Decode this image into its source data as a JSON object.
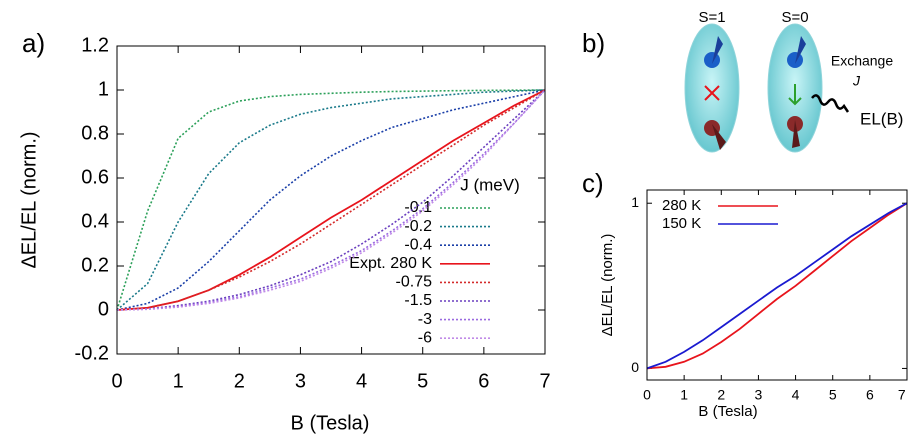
{
  "chart_data": [
    {
      "type": "line",
      "panel_label": "a)",
      "xlabel": "B (Tesla)",
      "ylabel": "ΔEL/EL (norm.)",
      "legend_title": "J (meV)",
      "legend": "upper right",
      "xlim": [
        0,
        7
      ],
      "ylim": [
        -0.2,
        1.2
      ],
      "xticks": [
        0,
        1,
        2,
        3,
        4,
        5,
        6,
        7
      ],
      "yticks": [
        -0.2,
        0,
        0.2,
        0.4,
        0.6,
        0.8,
        1,
        1.2
      ],
      "x": [
        0,
        0.5,
        1,
        1.5,
        2,
        2.5,
        3,
        3.5,
        4,
        4.5,
        5,
        5.5,
        6,
        6.5,
        7
      ],
      "series": [
        {
          "name": "-0.1",
          "color": "#2ca05a",
          "style": "dotted",
          "values": [
            0,
            0.45,
            0.78,
            0.9,
            0.95,
            0.97,
            0.98,
            0.985,
            0.99,
            0.993,
            0.995,
            0.997,
            0.998,
            0.999,
            1
          ]
        },
        {
          "name": "-0.2",
          "color": "#1a7a8a",
          "style": "dotted",
          "values": [
            0,
            0.12,
            0.4,
            0.62,
            0.76,
            0.84,
            0.89,
            0.92,
            0.94,
            0.96,
            0.97,
            0.98,
            0.99,
            0.995,
            1
          ]
        },
        {
          "name": "-0.4",
          "color": "#1a3fa8",
          "style": "dotted",
          "values": [
            0,
            0.03,
            0.1,
            0.22,
            0.36,
            0.5,
            0.61,
            0.7,
            0.77,
            0.83,
            0.87,
            0.91,
            0.94,
            0.97,
            1
          ]
        },
        {
          "name": "Expt. 280 K",
          "color": "#e8141c",
          "style": "solid",
          "values": [
            0,
            0.01,
            0.04,
            0.09,
            0.16,
            0.24,
            0.33,
            0.42,
            0.5,
            0.59,
            0.68,
            0.77,
            0.85,
            0.93,
            1
          ]
        },
        {
          "name": "-0.75",
          "color": "#d42a2a",
          "style": "dotted",
          "values": [
            0,
            0.01,
            0.04,
            0.09,
            0.15,
            0.22,
            0.3,
            0.39,
            0.48,
            0.57,
            0.66,
            0.75,
            0.84,
            0.92,
            1
          ]
        },
        {
          "name": "-1.5",
          "color": "#6a3fbf",
          "style": "dotted",
          "values": [
            0,
            0.005,
            0.02,
            0.04,
            0.07,
            0.11,
            0.16,
            0.22,
            0.3,
            0.39,
            0.49,
            0.61,
            0.74,
            0.87,
            1
          ]
        },
        {
          "name": "-3",
          "color": "#9a6ae0",
          "style": "dotted",
          "values": [
            0,
            0.004,
            0.015,
            0.035,
            0.06,
            0.1,
            0.14,
            0.2,
            0.27,
            0.36,
            0.46,
            0.58,
            0.71,
            0.85,
            1
          ]
        },
        {
          "name": "-6",
          "color": "#c08ae8",
          "style": "dotted",
          "values": [
            0,
            0.003,
            0.013,
            0.03,
            0.055,
            0.09,
            0.13,
            0.19,
            0.26,
            0.35,
            0.45,
            0.57,
            0.7,
            0.85,
            1
          ]
        }
      ]
    },
    {
      "type": "line",
      "panel_label": "c)",
      "xlabel": "B (Tesla)",
      "ylabel": "ΔEL/EL (norm.)",
      "legend": "upper left",
      "xlim": [
        0,
        7
      ],
      "ylim": [
        -0.07,
        1.08
      ],
      "xticks": [
        0,
        1,
        2,
        3,
        4,
        5,
        6,
        7
      ],
      "yticks": [
        0,
        1
      ],
      "x": [
        0,
        0.5,
        1,
        1.5,
        2,
        2.5,
        3,
        3.5,
        4,
        4.5,
        5,
        5.5,
        6,
        6.5,
        7
      ],
      "series": [
        {
          "name": "280 K",
          "color": "#e8141c",
          "style": "solid",
          "values": [
            0,
            0.01,
            0.04,
            0.09,
            0.16,
            0.24,
            0.33,
            0.42,
            0.5,
            0.59,
            0.68,
            0.77,
            0.85,
            0.93,
            1
          ]
        },
        {
          "name": "150 K",
          "color": "#1a1ad0",
          "style": "solid",
          "values": [
            0,
            0.04,
            0.1,
            0.17,
            0.25,
            0.33,
            0.41,
            0.49,
            0.56,
            0.64,
            0.72,
            0.8,
            0.87,
            0.94,
            1
          ]
        }
      ]
    }
  ],
  "diagram": {
    "panel_label": "b)",
    "left_state": "S=1",
    "right_state": "S=0",
    "exchange": "Exchange",
    "exchange_symbol": "J",
    "emission": "EL(B)"
  }
}
